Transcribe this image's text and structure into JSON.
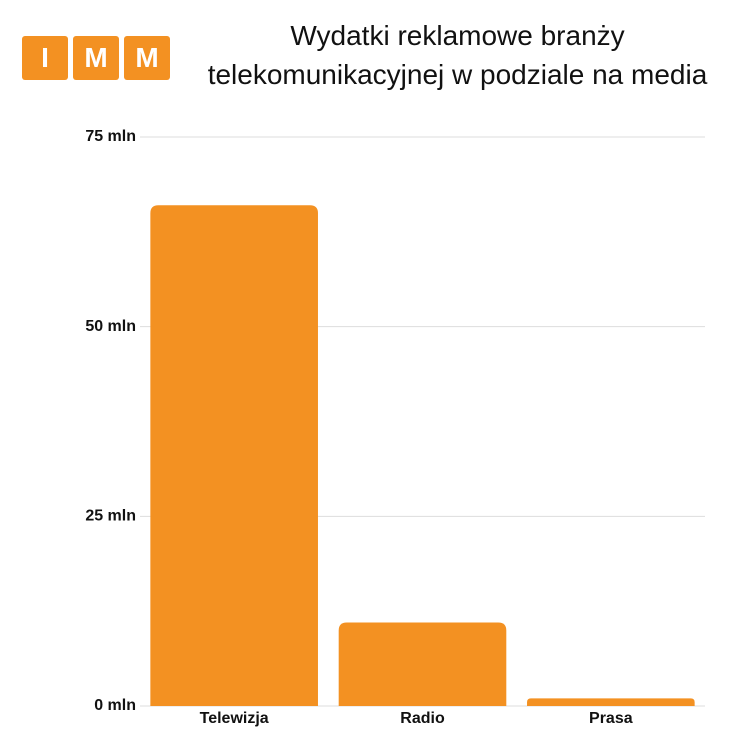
{
  "logo": [
    "I",
    "M",
    "M"
  ],
  "chart_data": {
    "type": "bar",
    "title": "Wydatki reklamowe branży telekomunikacyjnej w podziale na media",
    "categories": [
      "Telewizja",
      "Radio",
      "Prasa"
    ],
    "values": [
      66,
      11,
      1
    ],
    "color": "#f39122",
    "ylim": [
      0,
      75
    ],
    "yticks": [
      {
        "value": 0,
        "label": "0 mln"
      },
      {
        "value": 25,
        "label": "25 mln"
      },
      {
        "value": 50,
        "label": "50 mln"
      },
      {
        "value": 75,
        "label": "75 mln"
      }
    ],
    "grid": true
  }
}
